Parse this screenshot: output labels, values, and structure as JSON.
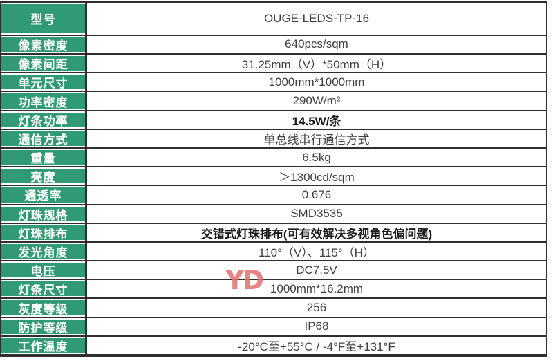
{
  "table": {
    "rows": [
      {
        "label": "型号",
        "value": "OUGE-LEDS-TP-16"
      },
      {
        "label": "像素密度",
        "value": "640pcs/sqm"
      },
      {
        "label": "像素间距",
        "value": "31.25mm（V）*50mm（H）"
      },
      {
        "label": "单元尺寸",
        "value": "1000mm*1000mm"
      },
      {
        "label": "功率密度",
        "value": "290W/m²"
      },
      {
        "label": "灯条功率",
        "value": "14.5W/条"
      },
      {
        "label": "通信方式",
        "value": "单总线串行通信方式"
      },
      {
        "label": "重量",
        "value": "6.5kg"
      },
      {
        "label": "亮度",
        "value": "＞1300cd/sqm"
      },
      {
        "label": "通透率",
        "value": "0.676"
      },
      {
        "label": "灯珠规格",
        "value": "SMD3535"
      },
      {
        "label": "灯珠排布",
        "value": "交错式灯珠排布(可有效解决多视角色偏问题)"
      },
      {
        "label": "发光角度",
        "value": "110°（V）、115°（H）"
      },
      {
        "label": "电压",
        "value": "DC7.5V"
      },
      {
        "label": "灯条尺寸",
        "value": "1000mm*16.2mm"
      },
      {
        "label": "灰度等级",
        "value": "256"
      },
      {
        "label": "防护等级",
        "value": "IP68"
      },
      {
        "label": "工作温度",
        "value": "-20°C至+55°C / -4°F至+131°F"
      }
    ]
  },
  "watermark": {
    "text": "YD"
  },
  "colors": {
    "label_bg_green": "#2F9A74",
    "border_dark": "#2F2F2F",
    "value_text": "#3F3F3F",
    "watermark_red": "#E56E6E"
  }
}
